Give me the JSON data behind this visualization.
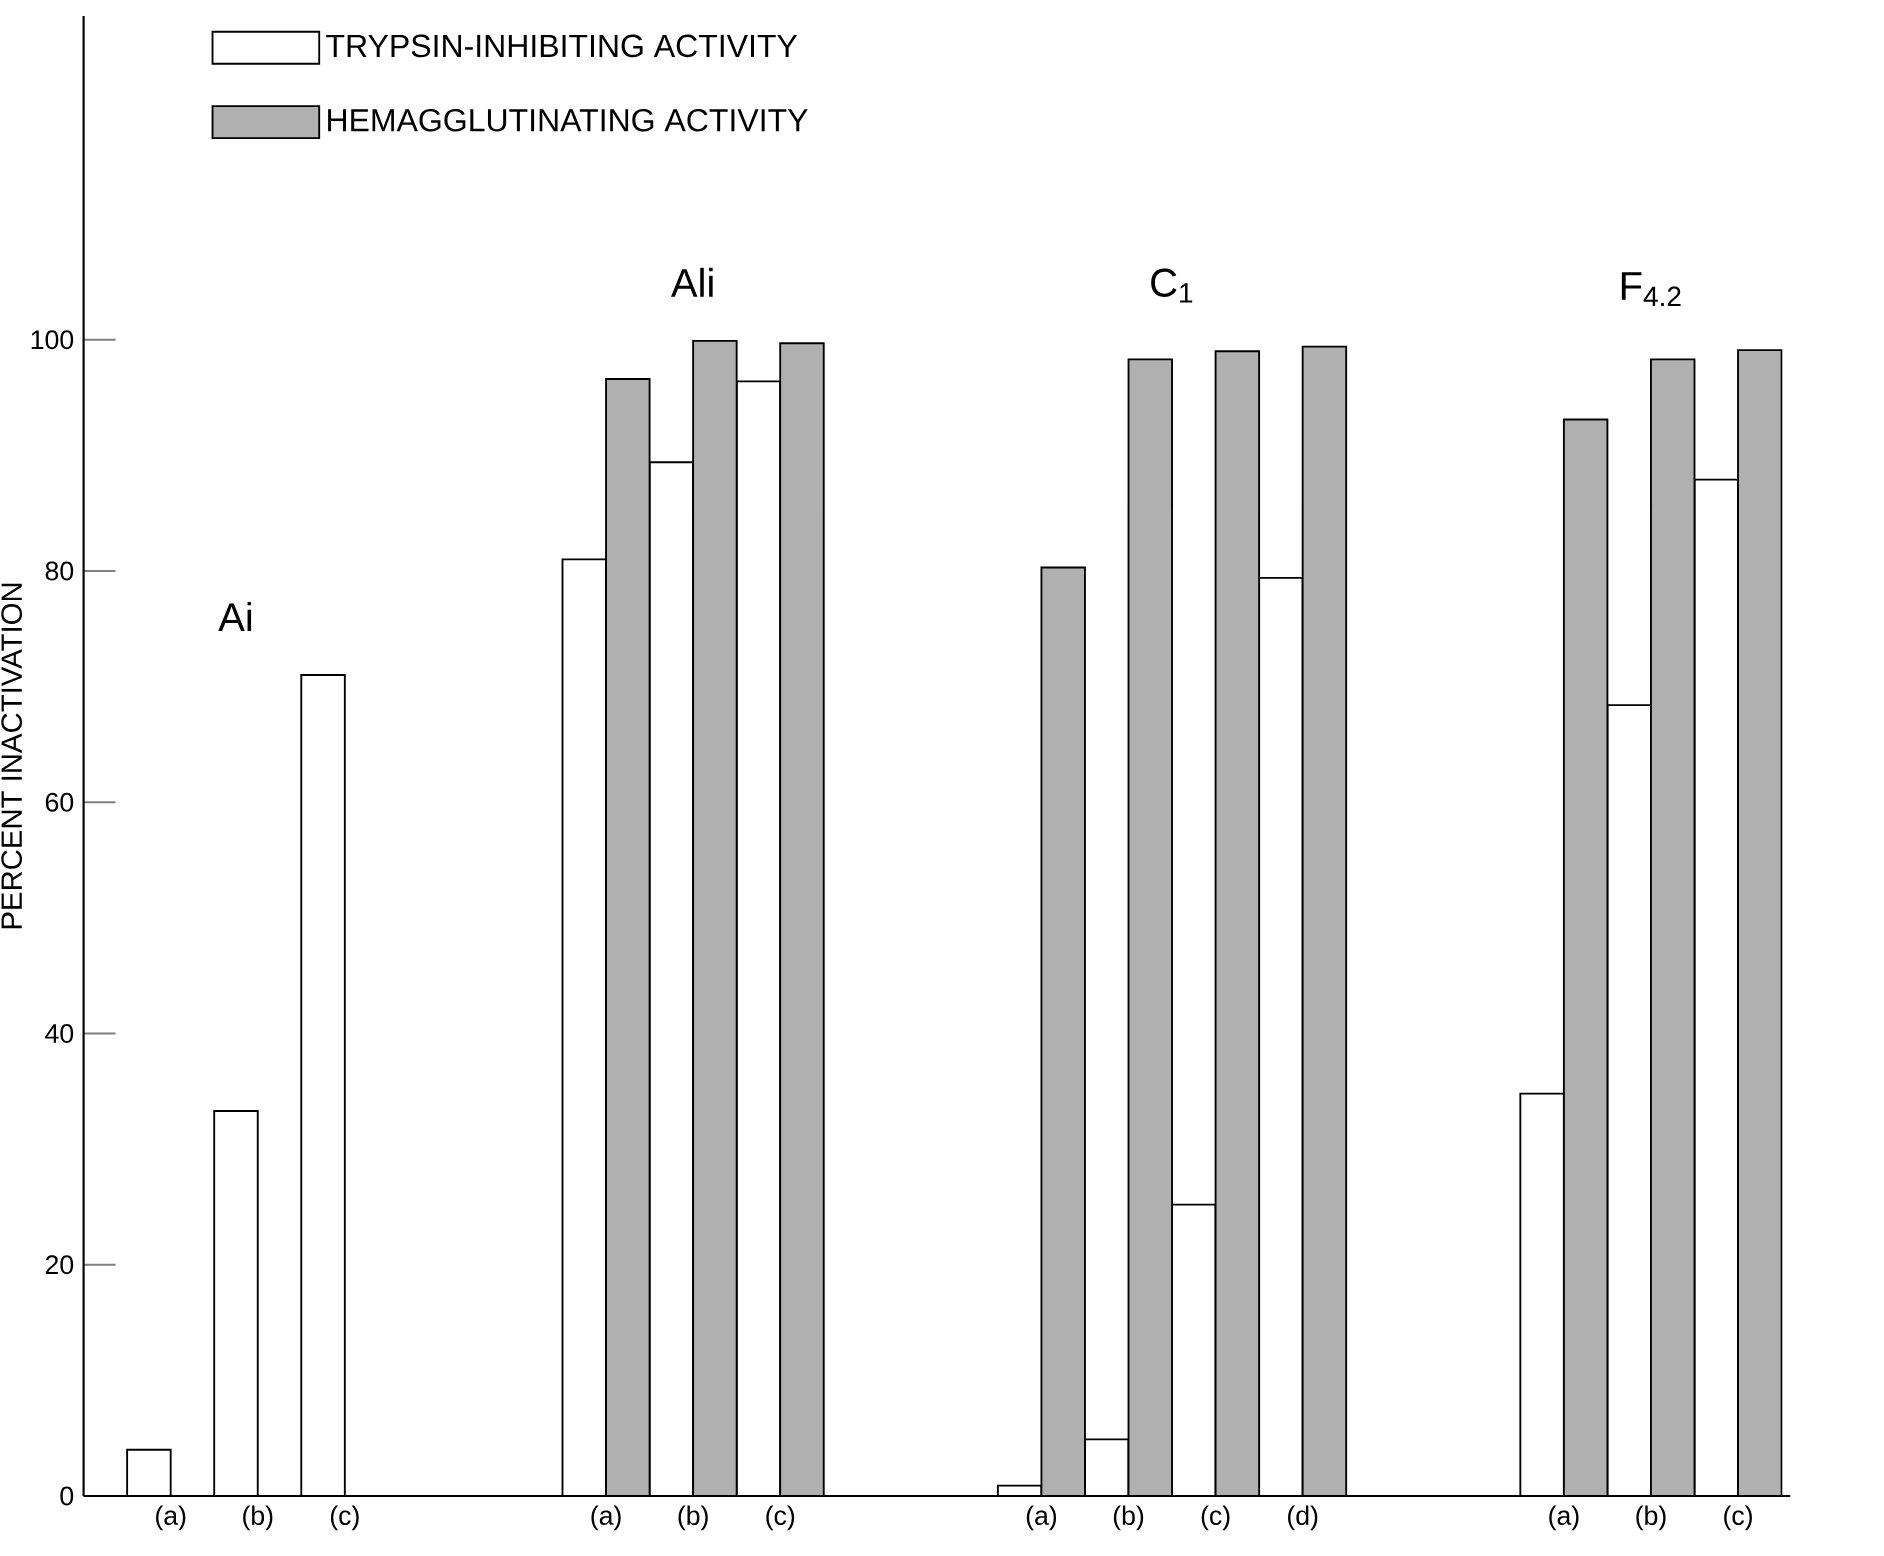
{
  "chart_data": {
    "type": "bar",
    "ylabel": "PERCENT INACTIVATION",
    "categories": [
      "(a)",
      "(b)",
      "(c)",
      null,
      null,
      "(a)",
      "(b)",
      "(c)",
      null,
      null,
      "(a)",
      "(b)",
      "(c)",
      "(d)",
      null,
      null,
      "(a)",
      "(b)",
      "(c)"
    ],
    "series": [
      {
        "name": "TRYPSIN-INHIBITING ACTIVITY",
        "color": "#ffffff",
        "values": [
          4,
          33.3,
          71,
          null,
          null,
          81,
          89.4,
          96.4,
          null,
          null,
          0.9,
          4.9,
          25.2,
          79.4,
          null,
          null,
          34.8,
          68.4,
          87.9
        ]
      },
      {
        "name": "HEMAGGLUTINATING ACTIVITY",
        "color": "#b0b0b0",
        "values": [
          null,
          null,
          null,
          null,
          null,
          96.6,
          99.9,
          99.7,
          null,
          null,
          80.3,
          98.3,
          99,
          99.4,
          null,
          null,
          93.1,
          98.3,
          99.1
        ]
      }
    ],
    "annotations": [
      "Ai",
      "Ali",
      "C$_{1}$",
      "F$_{4.2}$"
    ],
    "ylim": [
      0,
      128
    ],
    "yticks": [
      0,
      20,
      40,
      60,
      80,
      100
    ],
    "grid": false,
    "legend": "top left"
  }
}
